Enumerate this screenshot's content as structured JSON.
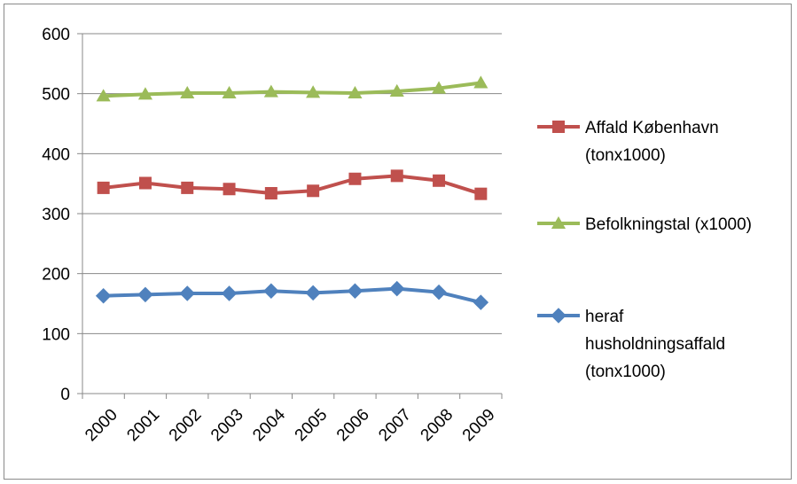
{
  "chart_data": {
    "type": "line",
    "title": "",
    "xlabel": "",
    "ylabel": "",
    "categories": [
      "2000",
      "2001",
      "2002",
      "2003",
      "2004",
      "2005",
      "2006",
      "2007",
      "2008",
      "2009"
    ],
    "ylim": [
      0,
      600
    ],
    "yticks": [
      0,
      100,
      200,
      300,
      400,
      500,
      600
    ],
    "grid": true,
    "legend_position": "right",
    "series": [
      {
        "name": "Affald København (tonx1000)",
        "legend_lines": [
          "Affald København",
          "(tonx1000)"
        ],
        "color": "#c0504d",
        "marker": "square",
        "values": [
          343,
          351,
          343,
          341,
          334,
          338,
          358,
          363,
          355,
          333
        ]
      },
      {
        "name": "Befolkningstal (x1000)",
        "legend_lines": [
          "Befolkningstal (x1000)"
        ],
        "color": "#9bbb59",
        "marker": "triangle",
        "values": [
          496,
          499,
          501,
          501,
          503,
          502,
          501,
          504,
          509,
          518
        ]
      },
      {
        "name": "heraf husholdningsaffald (tonx1000)",
        "legend_lines": [
          "heraf",
          "husholdningsaffald",
          "(tonx1000)"
        ],
        "color": "#4f81bd",
        "marker": "diamond",
        "values": [
          163,
          165,
          167,
          167,
          171,
          168,
          171,
          175,
          169,
          152
        ]
      }
    ]
  }
}
